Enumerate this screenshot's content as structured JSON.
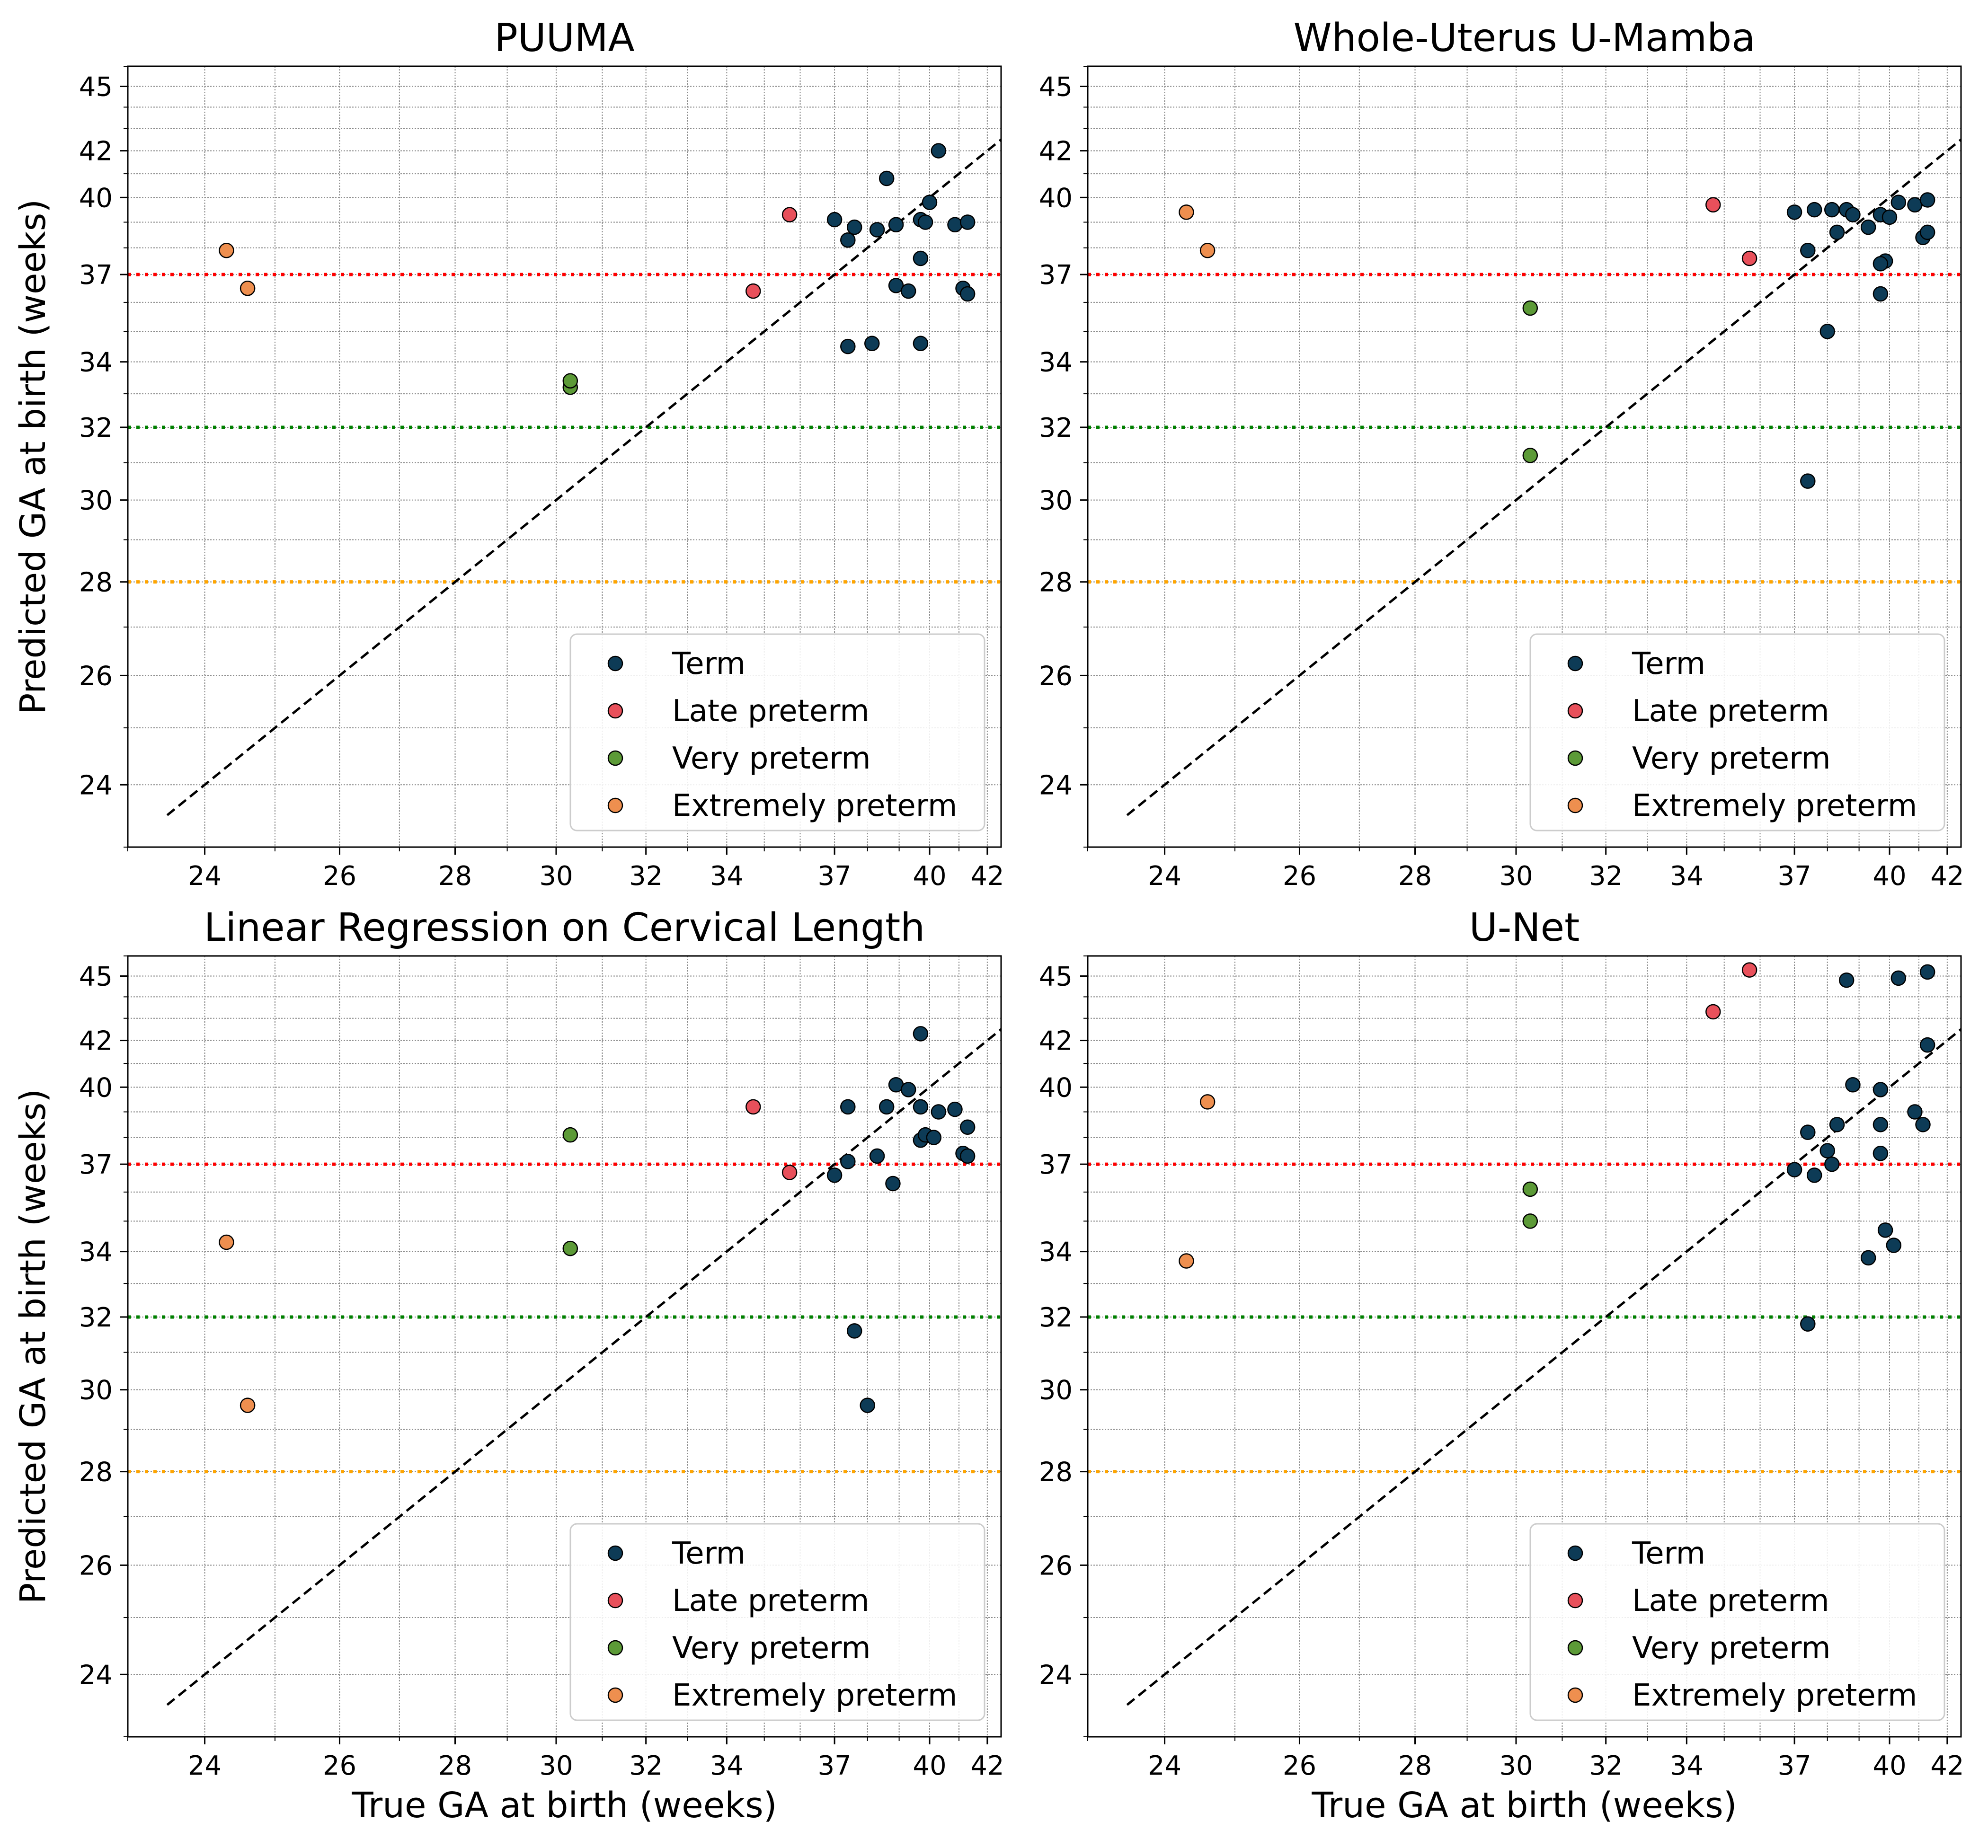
{
  "chart_data": [
    {
      "type": "scatter",
      "title": "PUUMA",
      "xlabel": "",
      "ylabel": "Predicted GA at birth (weeks)",
      "xlim": [
        23,
        42.5
      ],
      "ylim": [
        23,
        46
      ],
      "x_ticks": [
        24,
        26,
        28,
        30,
        32,
        34,
        37,
        40,
        42
      ],
      "y_ticks": [
        24,
        26,
        28,
        30,
        32,
        34,
        37,
        40,
        42,
        45
      ],
      "grid": true,
      "reference_lines": [
        {
          "y": 37,
          "color": "#ff0000"
        },
        {
          "y": 32,
          "color": "#008000"
        },
        {
          "y": 28,
          "color": "#ffa500"
        }
      ],
      "identity_line": true,
      "legend": {
        "position": "lower-right",
        "entries": [
          "Term",
          "Late preterm",
          "Very preterm",
          "Extremely preterm"
        ]
      },
      "series": [
        {
          "name": "Term",
          "color": "#0d3b56",
          "points": [
            [
              37.0,
              39.1
            ],
            [
              37.4,
              38.3
            ],
            [
              37.6,
              38.8
            ],
            [
              38.3,
              38.7
            ],
            [
              38.6,
              40.8
            ],
            [
              38.9,
              38.9
            ],
            [
              39.7,
              39.1
            ],
            [
              39.86,
              39.0
            ],
            [
              40.0,
              39.8
            ],
            [
              40.3,
              42.0
            ],
            [
              40.86,
              38.9
            ],
            [
              41.14,
              36.5
            ],
            [
              41.3,
              39.0
            ],
            [
              37.4,
              34.5
            ],
            [
              38.14,
              34.6
            ],
            [
              39.7,
              34.6
            ],
            [
              38.9,
              36.6
            ],
            [
              39.3,
              36.4
            ],
            [
              39.7,
              37.6
            ],
            [
              41.3,
              36.3
            ]
          ]
        },
        {
          "name": "Late preterm",
          "color": "#e8505b",
          "points": [
            [
              34.7,
              36.4
            ],
            [
              35.7,
              39.3
            ]
          ]
        },
        {
          "name": "Very preterm",
          "color": "#5c9a37",
          "points": [
            [
              30.3,
              33.2
            ],
            [
              30.3,
              33.4
            ]
          ]
        },
        {
          "name": "Extremely preterm",
          "color": "#ee8f4f",
          "points": [
            [
              24.3,
              37.9
            ],
            [
              24.6,
              36.5
            ]
          ]
        }
      ]
    },
    {
      "type": "scatter",
      "title": "Whole-Uterus U-Mamba",
      "xlabel": "",
      "ylabel": "",
      "xlim": [
        23,
        42.5
      ],
      "ylim": [
        23,
        46
      ],
      "x_ticks": [
        24,
        26,
        28,
        30,
        32,
        34,
        37,
        40,
        42
      ],
      "y_ticks": [
        24,
        26,
        28,
        30,
        32,
        34,
        37,
        40,
        42,
        45
      ],
      "grid": true,
      "reference_lines": [
        {
          "y": 37,
          "color": "#ff0000"
        },
        {
          "y": 32,
          "color": "#008000"
        },
        {
          "y": 28,
          "color": "#ffa500"
        }
      ],
      "identity_line": true,
      "legend": {
        "position": "lower-right",
        "entries": [
          "Term",
          "Late preterm",
          "Very preterm",
          "Extremely preterm"
        ]
      },
      "series": [
        {
          "name": "Term",
          "color": "#0d3b56",
          "points": [
            [
              37.0,
              39.4
            ],
            [
              37.4,
              37.9
            ],
            [
              37.6,
              39.5
            ],
            [
              38.14,
              39.5
            ],
            [
              38.3,
              38.6
            ],
            [
              38.6,
              39.5
            ],
            [
              38.8,
              39.3
            ],
            [
              39.3,
              38.8
            ],
            [
              39.7,
              39.3
            ],
            [
              39.86,
              37.5
            ],
            [
              40.0,
              39.2
            ],
            [
              40.3,
              39.8
            ],
            [
              40.86,
              39.7
            ],
            [
              41.14,
              38.4
            ],
            [
              41.3,
              38.6
            ],
            [
              41.3,
              39.9
            ],
            [
              39.7,
              37.4
            ],
            [
              39.7,
              36.3
            ],
            [
              38.0,
              35.0
            ],
            [
              37.4,
              30.5
            ]
          ]
        },
        {
          "name": "Late preterm",
          "color": "#e8505b",
          "points": [
            [
              34.7,
              39.7
            ],
            [
              35.7,
              37.6
            ]
          ]
        },
        {
          "name": "Very preterm",
          "color": "#5c9a37",
          "points": [
            [
              30.3,
              35.8
            ],
            [
              30.3,
              31.2
            ]
          ]
        },
        {
          "name": "Extremely preterm",
          "color": "#ee8f4f",
          "points": [
            [
              24.3,
              39.4
            ],
            [
              24.6,
              37.9
            ]
          ]
        }
      ]
    },
    {
      "type": "scatter",
      "title": "Linear Regression on Cervical Length",
      "xlabel": "True GA at birth (weeks)",
      "ylabel": "Predicted GA at birth (weeks)",
      "xlim": [
        23,
        42.5
      ],
      "ylim": [
        23,
        46
      ],
      "x_ticks": [
        24,
        26,
        28,
        30,
        32,
        34,
        37,
        40,
        42
      ],
      "y_ticks": [
        24,
        26,
        28,
        30,
        32,
        34,
        37,
        40,
        42,
        45
      ],
      "grid": true,
      "reference_lines": [
        {
          "y": 37,
          "color": "#ff0000"
        },
        {
          "y": 32,
          "color": "#008000"
        },
        {
          "y": 28,
          "color": "#ffa500"
        }
      ],
      "identity_line": true,
      "legend": {
        "position": "lower-right",
        "entries": [
          "Term",
          "Late preterm",
          "Very preterm",
          "Extremely preterm"
        ]
      },
      "series": [
        {
          "name": "Term",
          "color": "#0d3b56",
          "points": [
            [
              37.0,
              36.6
            ],
            [
              37.4,
              37.1
            ],
            [
              37.4,
              39.2
            ],
            [
              38.3,
              37.3
            ],
            [
              38.6,
              39.2
            ],
            [
              38.8,
              36.3
            ],
            [
              38.9,
              40.1
            ],
            [
              39.3,
              39.9
            ],
            [
              39.7,
              42.3
            ],
            [
              39.7,
              39.2
            ],
            [
              39.7,
              37.9
            ],
            [
              39.86,
              38.1
            ],
            [
              40.14,
              38.0
            ],
            [
              40.3,
              39.0
            ],
            [
              40.86,
              39.1
            ],
            [
              41.14,
              37.4
            ],
            [
              41.3,
              37.3
            ],
            [
              41.3,
              38.4
            ],
            [
              37.6,
              31.6
            ],
            [
              38.0,
              29.6
            ]
          ]
        },
        {
          "name": "Late preterm",
          "color": "#e8505b",
          "points": [
            [
              34.7,
              39.2
            ],
            [
              35.7,
              36.7
            ]
          ]
        },
        {
          "name": "Very preterm",
          "color": "#5c9a37",
          "points": [
            [
              30.3,
              38.1
            ],
            [
              30.3,
              34.1
            ]
          ]
        },
        {
          "name": "Extremely preterm",
          "color": "#ee8f4f",
          "points": [
            [
              24.3,
              34.3
            ],
            [
              24.6,
              29.6
            ]
          ]
        }
      ]
    },
    {
      "type": "scatter",
      "title": "U-Net",
      "xlabel": "True GA at birth (weeks)",
      "ylabel": "",
      "xlim": [
        23,
        42.5
      ],
      "ylim": [
        23,
        46
      ],
      "x_ticks": [
        24,
        26,
        28,
        30,
        32,
        34,
        37,
        40,
        42
      ],
      "y_ticks": [
        24,
        26,
        28,
        30,
        32,
        34,
        37,
        40,
        42,
        45
      ],
      "grid": true,
      "reference_lines": [
        {
          "y": 37,
          "color": "#ff0000"
        },
        {
          "y": 32,
          "color": "#008000"
        },
        {
          "y": 28,
          "color": "#ffa500"
        }
      ],
      "identity_line": true,
      "legend": {
        "position": "lower-right",
        "entries": [
          "Term",
          "Late preterm",
          "Very preterm",
          "Extremely preterm"
        ]
      },
      "series": [
        {
          "name": "Term",
          "color": "#0d3b56",
          "points": [
            [
              37.0,
              36.8
            ],
            [
              37.4,
              38.2
            ],
            [
              37.6,
              36.6
            ],
            [
              38.0,
              37.5
            ],
            [
              38.14,
              37.0
            ],
            [
              38.3,
              38.5
            ],
            [
              38.6,
              44.8
            ],
            [
              38.8,
              40.1
            ],
            [
              39.3,
              33.8
            ],
            [
              39.7,
              39.9
            ],
            [
              39.7,
              38.5
            ],
            [
              39.7,
              37.4
            ],
            [
              39.86,
              34.7
            ],
            [
              40.14,
              34.2
            ],
            [
              40.3,
              44.9
            ],
            [
              40.86,
              39.0
            ],
            [
              41.14,
              38.5
            ],
            [
              41.3,
              41.8
            ],
            [
              41.3,
              45.2
            ],
            [
              37.4,
              31.8
            ]
          ]
        },
        {
          "name": "Late preterm",
          "color": "#e8505b",
          "points": [
            [
              34.7,
              43.3
            ],
            [
              35.7,
              45.3
            ]
          ]
        },
        {
          "name": "Very preterm",
          "color": "#5c9a37",
          "points": [
            [
              30.3,
              36.1
            ],
            [
              30.3,
              35.0
            ]
          ]
        },
        {
          "name": "Extremely preterm",
          "color": "#ee8f4f",
          "points": [
            [
              24.3,
              33.7
            ],
            [
              24.6,
              39.4
            ]
          ]
        }
      ]
    }
  ]
}
